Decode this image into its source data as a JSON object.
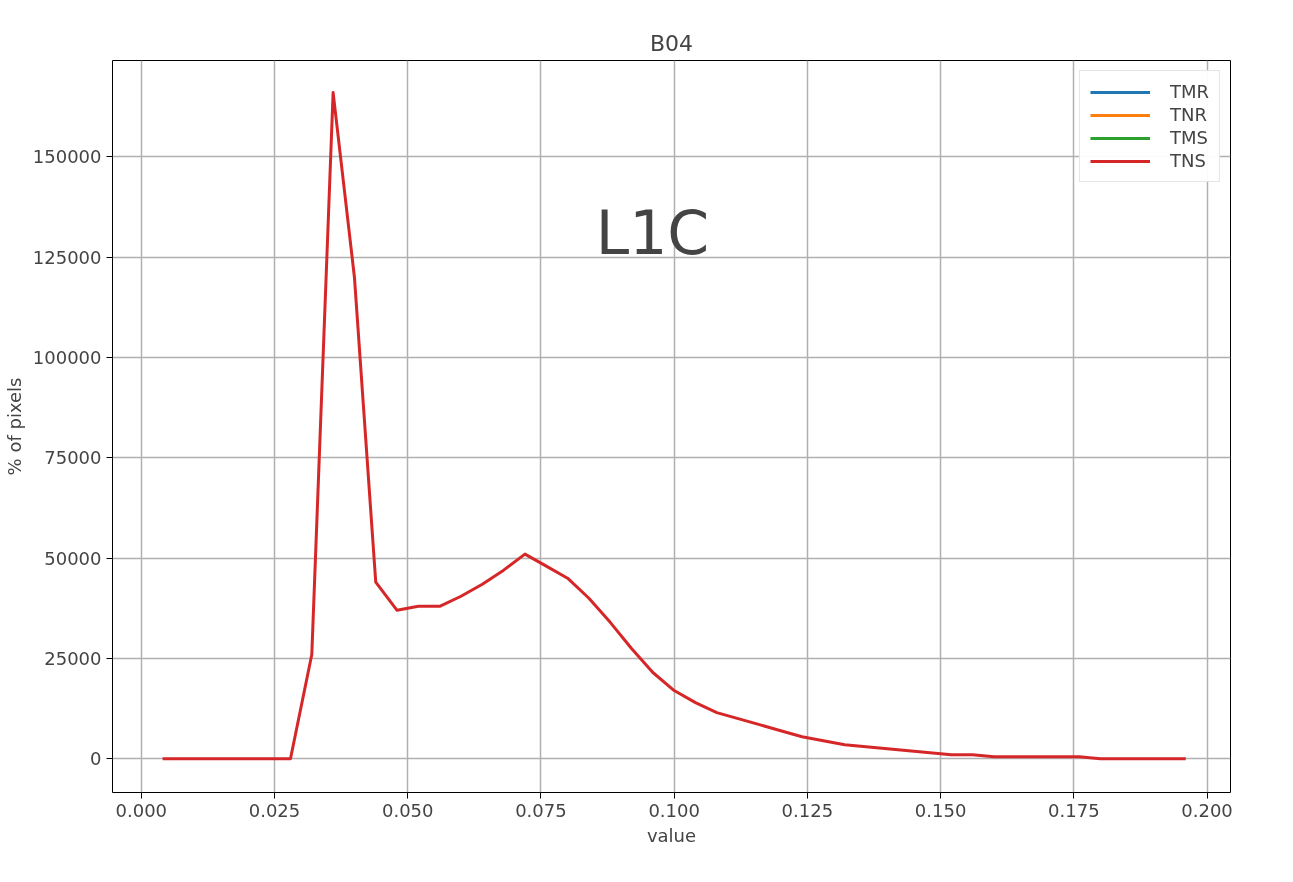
{
  "chart_data": {
    "type": "line",
    "title": "B04",
    "xlabel": "value",
    "ylabel": "% of pixels",
    "annotations": [
      "L1C"
    ],
    "x": [
      0.004,
      0.008,
      0.012,
      0.016,
      0.02,
      0.024,
      0.028,
      0.032,
      0.036,
      0.04,
      0.044,
      0.048,
      0.052,
      0.056,
      0.06,
      0.064,
      0.068,
      0.072,
      0.076,
      0.08,
      0.084,
      0.088,
      0.092,
      0.096,
      0.1,
      0.104,
      0.108,
      0.112,
      0.116,
      0.12,
      0.124,
      0.128,
      0.132,
      0.136,
      0.14,
      0.144,
      0.148,
      0.152,
      0.156,
      0.16,
      0.164,
      0.168,
      0.172,
      0.176,
      0.18,
      0.184,
      0.188,
      0.192,
      0.196
    ],
    "series": [
      {
        "name": "TMR",
        "color": "#1f77b4",
        "values": [
          null,
          null,
          null,
          null,
          null,
          null,
          null,
          null,
          null,
          null,
          null,
          null,
          null,
          null,
          null,
          null,
          null,
          null,
          null,
          null,
          null,
          null,
          null,
          null,
          null,
          null,
          null,
          null,
          null,
          null,
          null,
          null,
          null,
          null,
          null,
          null,
          null,
          null,
          null,
          null,
          null,
          null,
          null,
          null,
          null,
          null,
          null,
          null,
          null
        ]
      },
      {
        "name": "TNR",
        "color": "#ff7f0e",
        "values": [
          null,
          null,
          null,
          null,
          null,
          null,
          null,
          null,
          null,
          null,
          null,
          null,
          null,
          null,
          null,
          null,
          null,
          null,
          null,
          null,
          null,
          null,
          null,
          null,
          null,
          null,
          null,
          null,
          null,
          null,
          null,
          null,
          null,
          null,
          null,
          null,
          null,
          null,
          null,
          null,
          null,
          null,
          null,
          null,
          null,
          null,
          null,
          null,
          null
        ]
      },
      {
        "name": "TMS",
        "color": "#2ca02c",
        "values": [
          null,
          null,
          null,
          null,
          null,
          null,
          null,
          null,
          null,
          null,
          null,
          null,
          null,
          null,
          null,
          null,
          null,
          null,
          null,
          null,
          null,
          null,
          null,
          null,
          null,
          null,
          null,
          null,
          null,
          null,
          null,
          null,
          null,
          null,
          null,
          null,
          null,
          null,
          null,
          null,
          null,
          null,
          null,
          null,
          null,
          null,
          null,
          null,
          null
        ]
      },
      {
        "name": "TNS",
        "color": "#d62728",
        "values": [
          0,
          0,
          0,
          0,
          0,
          0,
          0,
          26000,
          166000,
          120000,
          44000,
          37000,
          38000,
          38000,
          40500,
          43500,
          47000,
          51000,
          48000,
          45000,
          40000,
          34000,
          27500,
          21500,
          17000,
          14000,
          11500,
          10000,
          8500,
          7000,
          5500,
          4500,
          3500,
          3000,
          2500,
          2000,
          1500,
          1000,
          1000,
          500,
          500,
          500,
          500,
          500,
          0,
          0,
          0,
          0,
          0
        ]
      }
    ],
    "xlim": [
      -0.0054,
      0.2044
    ],
    "ylim": [
      -8400,
      174000
    ],
    "xticks": [
      {
        "value": 0,
        "label": "0.000"
      },
      {
        "value": 0.025,
        "label": "0.025"
      },
      {
        "value": 0.05,
        "label": "0.050"
      },
      {
        "value": 0.075,
        "label": "0.075"
      },
      {
        "value": 0.1,
        "label": "0.100"
      },
      {
        "value": 0.125,
        "label": "0.125"
      },
      {
        "value": 0.15,
        "label": "0.150"
      },
      {
        "value": 0.175,
        "label": "0.175"
      },
      {
        "value": 0.2,
        "label": "0.200"
      }
    ],
    "yticks": [
      0,
      25000,
      50000,
      75000,
      100000,
      125000,
      150000
    ],
    "grid": true,
    "legend": "top right"
  }
}
